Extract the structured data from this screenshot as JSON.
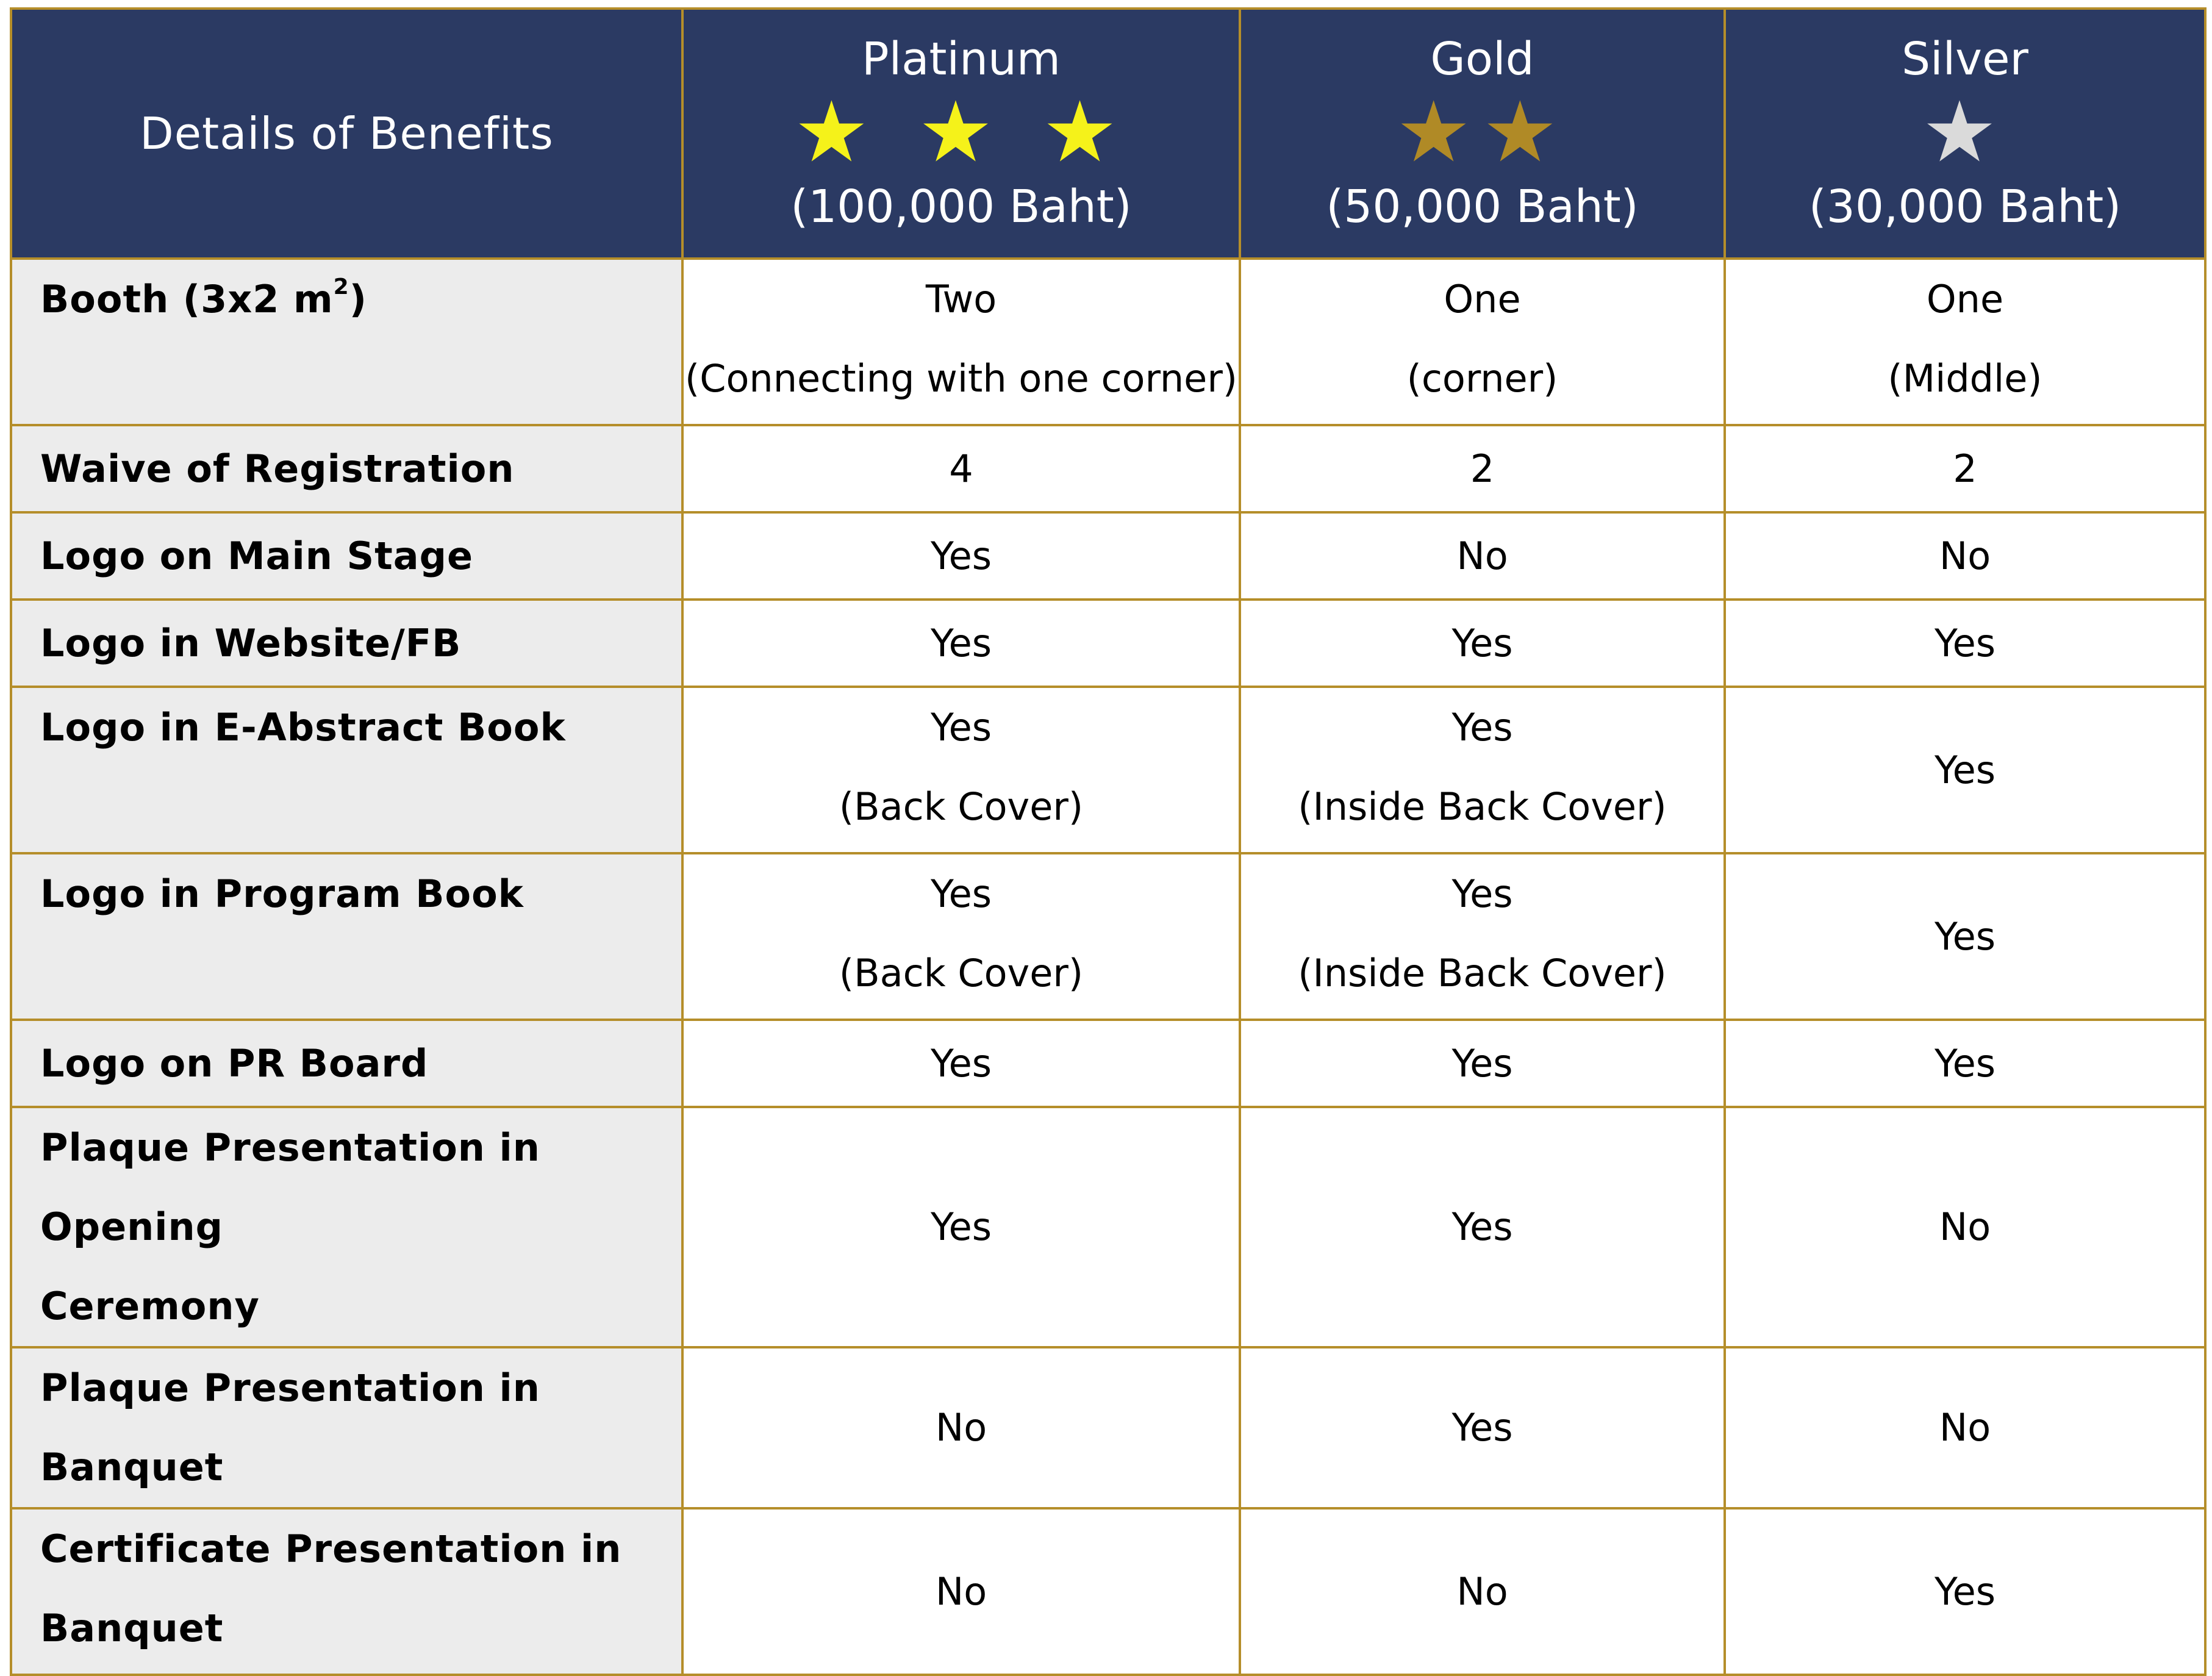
{
  "header": {
    "label": "Details of Benefits",
    "tiers": [
      {
        "name": "Platinum",
        "stars": "★ ★ ★",
        "price": "(100,000 Baht)",
        "star_color": "#f5f21a"
      },
      {
        "name": "Gold",
        "stars": "★★",
        "price": "(50,000 Baht)",
        "star_color": "#b08a26"
      },
      {
        "name": "Silver",
        "stars": "★",
        "price": "(30,000 Baht)",
        "star_color": "#dadada"
      }
    ]
  },
  "booth_label": {
    "text": "Booth (3x2 m",
    "sup": "2",
    "close": ")"
  },
  "rows": [
    {
      "label": [
        "",
        ""
      ],
      "platinum": [
        "Two",
        "(Connecting with one corner)"
      ],
      "gold": [
        "One",
        "(corner)"
      ],
      "silver": [
        "One",
        "(Middle)"
      ]
    },
    {
      "label": [
        "Waive of Registration"
      ],
      "platinum": [
        "4"
      ],
      "gold": [
        "2"
      ],
      "silver": [
        "2"
      ]
    },
    {
      "label": [
        "Logo on Main Stage"
      ],
      "platinum": [
        "Yes"
      ],
      "gold": [
        "No"
      ],
      "silver": [
        "No"
      ]
    },
    {
      "label": [
        "Logo in Website/FB"
      ],
      "platinum": [
        "Yes"
      ],
      "gold": [
        "Yes"
      ],
      "silver": [
        "Yes"
      ]
    },
    {
      "label": [
        "Logo in E-Abstract Book"
      ],
      "platinum": [
        "Yes",
        "(Back Cover)"
      ],
      "gold": [
        "Yes",
        "(Inside Back Cover)"
      ],
      "silver": [
        "Yes"
      ]
    },
    {
      "label": [
        "Logo in Program Book"
      ],
      "platinum": [
        "Yes",
        "(Back Cover)"
      ],
      "gold": [
        "Yes",
        "(Inside Back Cover)"
      ],
      "silver": [
        "Yes"
      ]
    },
    {
      "label": [
        "Logo on PR Board"
      ],
      "platinum": [
        "Yes"
      ],
      "gold": [
        "Yes"
      ],
      "silver": [
        "Yes"
      ]
    },
    {
      "label": [
        "Plaque Presentation in Opening",
        "Ceremony"
      ],
      "platinum": [
        "Yes"
      ],
      "gold": [
        "Yes"
      ],
      "silver": [
        "No"
      ]
    },
    {
      "label": [
        "Plaque Presentation in Banquet"
      ],
      "platinum": [
        "No"
      ],
      "gold": [
        "Yes"
      ],
      "silver": [
        "No"
      ]
    },
    {
      "label": [
        "Certificate Presentation in",
        "Banquet"
      ],
      "platinum": [
        "No"
      ],
      "gold": [
        "No"
      ],
      "silver": [
        "Yes"
      ]
    }
  ]
}
